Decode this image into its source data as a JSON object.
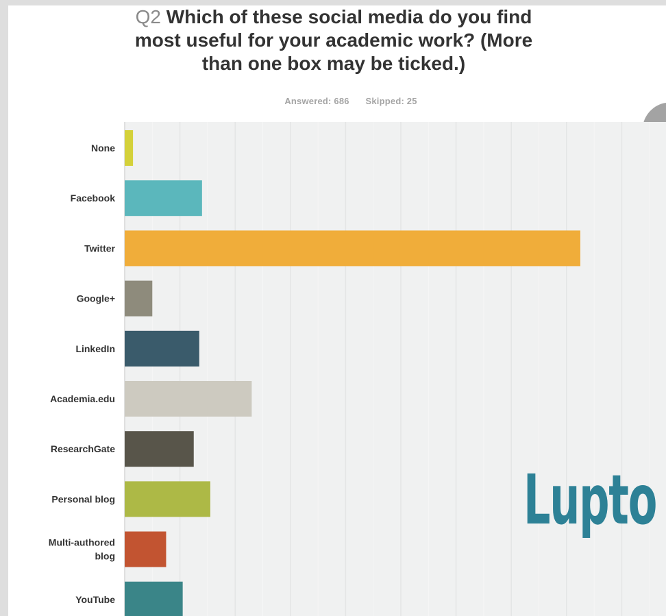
{
  "title": {
    "prefix": "Q2",
    "line1": "Which of these social media do you find",
    "line2": "most useful for your academic work? (More",
    "line3": "than one box may be ticked.)"
  },
  "stats": {
    "answered": "Answered: 686",
    "skipped": "Skipped: 25"
  },
  "watermark": {
    "text": "Lupto",
    "color": "#2d8196"
  },
  "chart_data": {
    "type": "bar",
    "orientation": "horizontal",
    "title": "Q2 Which of these social media do you find most useful for your academic work? (More than one box may be ticked.)",
    "categories": [
      "None",
      "Facebook",
      "Twitter",
      "Google+",
      "LinkedIn",
      "Academia.edu",
      "ResearchGate",
      "Personal blog",
      "Multi-authored blog",
      "YouTube"
    ],
    "category_lines": [
      [
        "None"
      ],
      [
        "Facebook"
      ],
      [
        "Twitter"
      ],
      [
        "Google+"
      ],
      [
        "LinkedIn"
      ],
      [
        "Academia.edu"
      ],
      [
        "ResearchGate"
      ],
      [
        "Personal blog"
      ],
      [
        "Multi-authored",
        "blog"
      ],
      [
        "YouTube"
      ]
    ],
    "values": [
      1.5,
      14,
      82.5,
      5,
      13.5,
      23,
      12.5,
      15.5,
      7.5,
      10.5
    ],
    "value_unit": "percent of respondents",
    "xlim": [
      0,
      100
    ],
    "colors": [
      "#d4d13a",
      "#5bb7bc",
      "#f0ad3a",
      "#8e8b7c",
      "#3a5b6b",
      "#cdcac0",
      "#58554a",
      "#adb946",
      "#c25431",
      "#3a8588"
    ],
    "grid": true,
    "legend": "none"
  }
}
